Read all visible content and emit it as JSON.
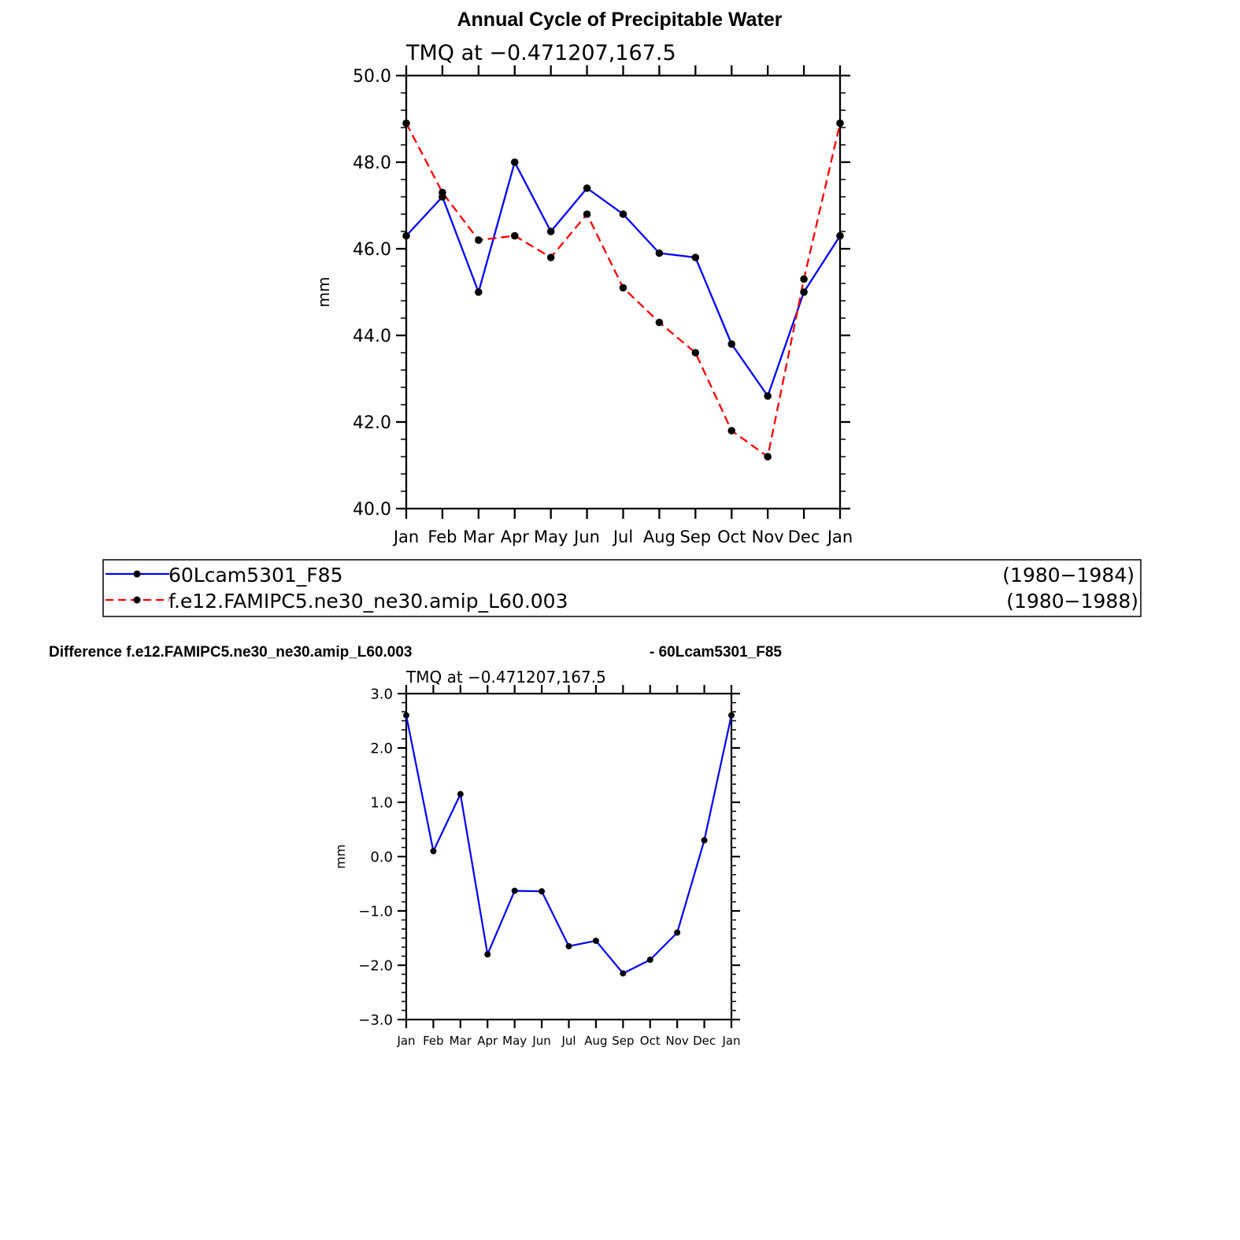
{
  "figure": {
    "title": "Annual Cycle of Precipitable Water",
    "difference_title_left": "Difference f.e12.FAMIPC5.ne30_ne30.amip_L60.003",
    "difference_title_right": "- 60Lcam5301_F85"
  },
  "legend": {
    "entries": [
      {
        "label": "60Lcam5301_F85",
        "years": "(1980−1984)",
        "color": "#0000ff",
        "dash": "solid"
      },
      {
        "label": "f.e12.FAMIPC5.ne30_ne30.amip_L60.003",
        "years": "(1980−1988)",
        "color": "#ff0000",
        "dash": "dashed"
      }
    ]
  },
  "chart_data": [
    {
      "type": "line",
      "subtitle": "TMQ at −0.471207,167.5",
      "ylabel": "mm",
      "xlabel": "",
      "ylim": [
        40.0,
        50.0
      ],
      "yticks": [
        "40.0",
        "42.0",
        "44.0",
        "46.0",
        "48.0",
        "50.0"
      ],
      "categories": [
        "Jan",
        "Feb",
        "Mar",
        "Apr",
        "May",
        "Jun",
        "Jul",
        "Aug",
        "Sep",
        "Oct",
        "Nov",
        "Dec",
        "Jan"
      ],
      "series": [
        {
          "name": "60Lcam5301_F85",
          "color": "#0000ff",
          "dash": "solid",
          "values": [
            46.3,
            47.2,
            45.0,
            48.0,
            46.4,
            47.4,
            46.8,
            45.9,
            45.8,
            43.8,
            42.6,
            45.0,
            46.3
          ]
        },
        {
          "name": "f.e12.FAMIPC5.ne30_ne30.amip_L60.003",
          "color": "#ff0000",
          "dash": "dashed",
          "values": [
            48.9,
            47.3,
            46.2,
            46.3,
            45.8,
            46.8,
            45.1,
            44.3,
            43.6,
            41.8,
            41.2,
            45.3,
            48.9
          ]
        }
      ]
    },
    {
      "type": "line",
      "subtitle": "TMQ at −0.471207,167.5",
      "ylabel": "mm",
      "xlabel": "",
      "ylim": [
        -3.0,
        3.0
      ],
      "yticks": [
        "−3.0",
        "−2.0",
        "−1.0",
        "0.0",
        "1.0",
        "2.0",
        "3.0"
      ],
      "categories": [
        "Jan",
        "Feb",
        "Mar",
        "Apr",
        "May",
        "Jun",
        "Jul",
        "Aug",
        "Sep",
        "Oct",
        "Nov",
        "Dec",
        "Jan"
      ],
      "series": [
        {
          "name": "Difference",
          "color": "#0000ff",
          "dash": "solid",
          "values": [
            2.6,
            0.1,
            1.15,
            -1.8,
            -0.63,
            -0.64,
            -1.65,
            -1.55,
            -2.15,
            -1.9,
            -1.4,
            0.3,
            2.6
          ]
        }
      ]
    }
  ]
}
